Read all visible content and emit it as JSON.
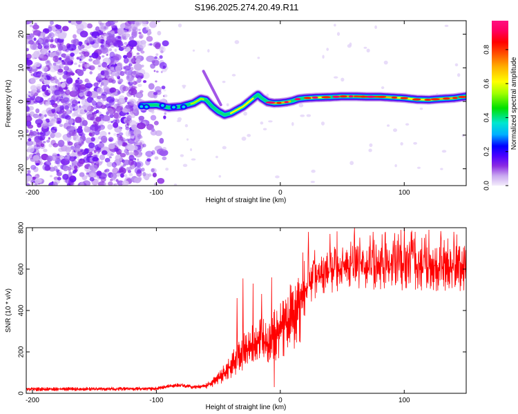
{
  "title": "S196.2025.274.20.49.R11",
  "chart_data": [
    {
      "type": "heatmap",
      "title": "S196.2025.274.20.49.R11",
      "xlabel": "Height of straight line (km)",
      "ylabel": "Frequency (Hz)",
      "xlim": [
        -205,
        150
      ],
      "ylim": [
        -25,
        24
      ],
      "x_ticks": [
        -200,
        -100,
        0,
        100
      ],
      "y_ticks": [
        -20,
        -10,
        0,
        10,
        20
      ],
      "colorbar": {
        "label": "Normalized spectral amplitude",
        "lim": [
          0,
          0.97
        ],
        "ticks": [
          0,
          0.2,
          0.4,
          0.6,
          0.8
        ],
        "tick_labels": [
          "0.0",
          "0.2",
          "0.4",
          "0.6",
          "0.8"
        ],
        "colors": [
          "#f4ecfb",
          "#c9a8f0",
          "#8b2be2",
          "#4b00ff",
          "#0000ff",
          "#00b0ff",
          "#00e6d0",
          "#00e000",
          "#a0ff00",
          "#ffff00",
          "#ffb000",
          "#ff5000",
          "#ff0000",
          "#ff0060",
          "#ff1080"
        ]
      },
      "noise_region_x": [
        -205,
        -100
      ],
      "signal_start_x": -112,
      "ridge": {
        "x": [
          -112,
          -100,
          -90,
          -80,
          -70,
          -64,
          -60,
          -55,
          -50,
          -45,
          -40,
          -35,
          -30,
          -25,
          -20,
          -18,
          -15,
          -10,
          -5,
          0,
          5,
          10,
          15,
          20,
          30,
          40,
          50,
          60,
          70,
          80,
          90,
          100,
          110,
          120,
          130,
          140,
          150
        ],
        "y": [
          -1.2,
          -1.0,
          -1.8,
          -1.5,
          -0.5,
          0.8,
          0.5,
          -1.5,
          -3.0,
          -4.0,
          -3.5,
          -2.5,
          -1.5,
          0.0,
          1.5,
          2.0,
          1.0,
          -0.2,
          -0.5,
          -0.4,
          -0.2,
          0.2,
          0.8,
          1.0,
          1.2,
          1.3,
          1.5,
          1.5,
          1.4,
          1.4,
          1.2,
          1.0,
          0.6,
          0.5,
          0.8,
          1.0,
          1.5
        ]
      }
    },
    {
      "type": "line",
      "xlabel": "Height of straight line (km)",
      "ylabel": "SNR (10 * v/v)",
      "xlim": [
        -205,
        150
      ],
      "ylim": [
        0,
        800
      ],
      "x_ticks": [
        -200,
        -100,
        0,
        100
      ],
      "y_ticks": [
        0,
        200,
        400,
        600,
        800
      ],
      "color": "#ff0000",
      "series": [
        {
          "name": "SNR",
          "envelope_x": [
            -205,
            -100,
            -90,
            -80,
            -70,
            -60,
            -50,
            -40,
            -35,
            -30,
            -25,
            -20,
            -15,
            -10,
            -5,
            0,
            5,
            10,
            15,
            20,
            25,
            30,
            40,
            50,
            60,
            80,
            100,
            120,
            140,
            150
          ],
          "envelope_y": [
            20,
            22,
            35,
            40,
            30,
            35,
            70,
            130,
            170,
            200,
            220,
            240,
            260,
            230,
            280,
            300,
            340,
            380,
            430,
            500,
            540,
            560,
            590,
            600,
            605,
            600,
            605,
            600,
            605,
            600
          ],
          "peak_values": {
            "-35": 460,
            "-30": 555,
            "-22": 530,
            "-15": 480,
            "-7": 560,
            "-5": 30,
            "40": 770,
            "60": 800,
            "75": 780,
            "100": 800,
            "120": 790,
            "140": 780
          }
        }
      ]
    }
  ]
}
